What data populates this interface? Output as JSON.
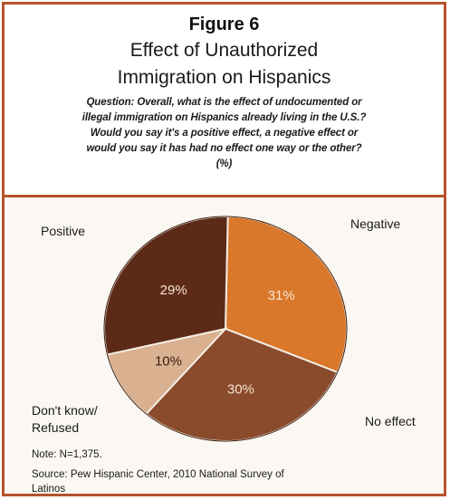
{
  "figure_label": "Figure 6",
  "title_line1": "Effect of Unauthorized",
  "title_line2": "Immigration on Hispanics",
  "question_line1": "Question: Overall, what is the effect of undocumented or",
  "question_line2": "illegal immigration on Hispanics already living in the U.S.?",
  "question_line3": "Would you say it's a positive effect, a negative effect or",
  "question_line4": "would you say it has had no effect one way or the other?",
  "question_line5": "(%)",
  "labels": {
    "positive": "Positive",
    "negative": "Negative",
    "no_effect": "No effect",
    "dont_know_line1": "Don't know/",
    "dont_know_line2": "Refused"
  },
  "note": "Note: N=1,375.",
  "source_line1": "Source:  Pew Hispanic Center, 2010 National Survey of",
  "source_line2": "Latinos",
  "colors": {
    "frame": "#b5532e",
    "negative": "#d9782b",
    "no_effect": "#8a4a2c",
    "dont_know": "#d9b090",
    "positive": "#5c2a17"
  },
  "chart_data": {
    "type": "pie",
    "categories": [
      "Negative",
      "No effect",
      "Don't know/Refused",
      "Positive"
    ],
    "values": [
      31,
      30,
      10,
      29
    ],
    "value_labels": [
      "31%",
      "30%",
      "10%",
      "29%"
    ],
    "title": "Effect of Unauthorized Immigration on Hispanics"
  }
}
